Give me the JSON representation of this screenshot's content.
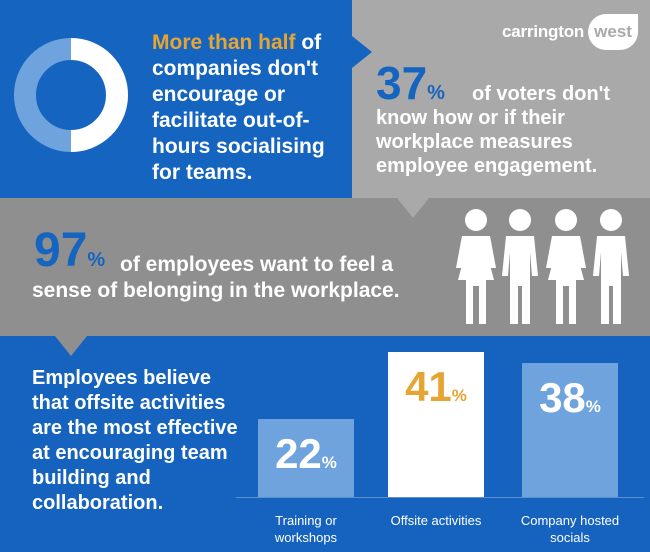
{
  "brand": {
    "part1": "carrington",
    "part2": "west"
  },
  "stat1": {
    "highlight": "More than half",
    "rest": " of companies don't encourage or facilitate out-of-hours socialising for teams."
  },
  "stat2": {
    "number": "37",
    "percent": "%",
    "text": "of voters don't know how or if their workplace measures employee engagement."
  },
  "stat3": {
    "number": "97",
    "percent": "%",
    "text": "of employees want to feel a sense of belonging in the workplace."
  },
  "bottom": {
    "text": "Employees believe that offsite activities are the most effective at encouraging team building and collaboration."
  },
  "colors": {
    "blue": "#1565c0",
    "gold": "#e6a532",
    "grey": "#a9a9a9",
    "light_blue": "#6fa3de"
  },
  "icons": {
    "people": "people-group-icon",
    "donut": "donut-chart-icon"
  },
  "chart_data": {
    "type": "bar",
    "categories": [
      "Training or workshops",
      "Offsite activities",
      "Company hosted socials"
    ],
    "values": [
      22,
      41,
      38
    ],
    "value_labels": [
      "22",
      "41",
      "38"
    ],
    "value_suffix": "%",
    "ylim": [
      0,
      45
    ]
  }
}
